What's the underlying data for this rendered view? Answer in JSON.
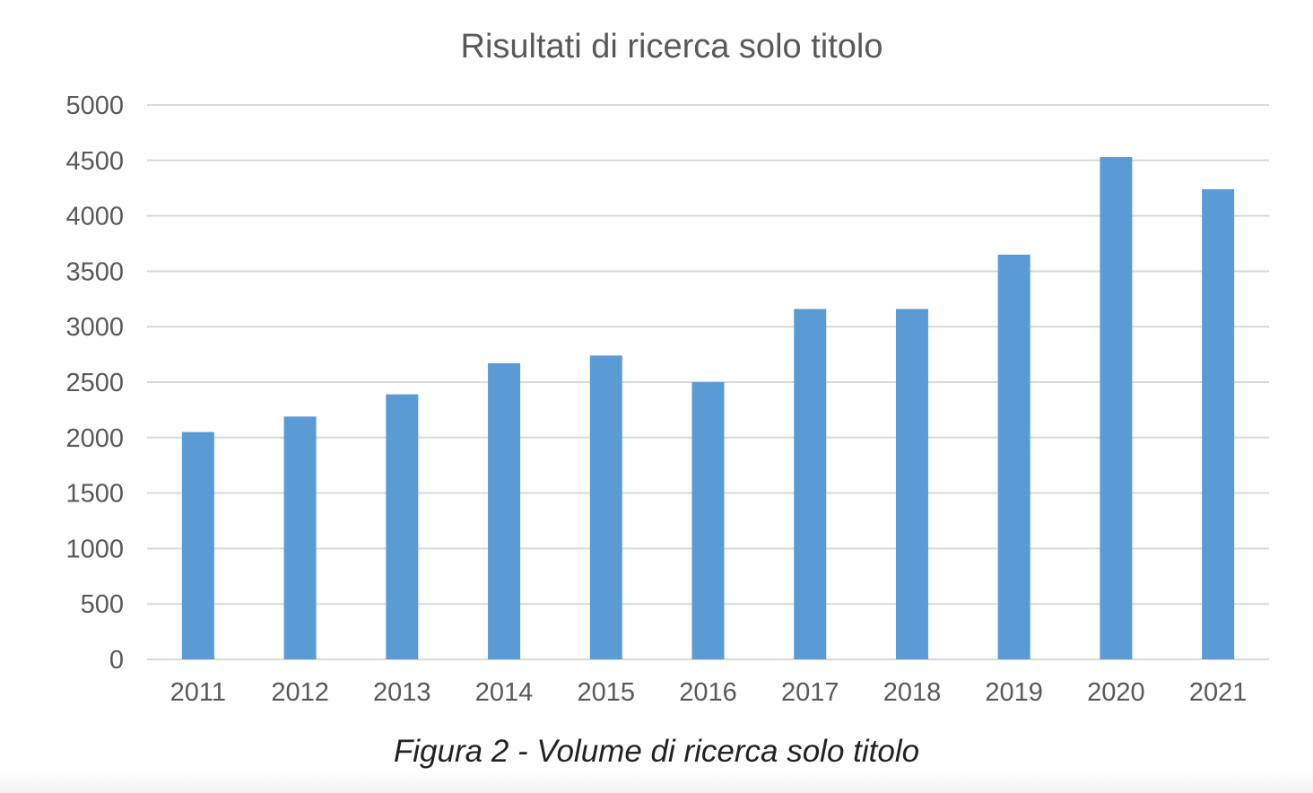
{
  "chart_data": {
    "type": "bar",
    "title": "Risultati di ricerca solo titolo",
    "xlabel": "",
    "ylabel": "",
    "categories": [
      "2011",
      "2012",
      "2013",
      "2014",
      "2015",
      "2016",
      "2017",
      "2018",
      "2019",
      "2020",
      "2021"
    ],
    "values": [
      2050,
      2190,
      2390,
      2670,
      2740,
      2500,
      3160,
      3160,
      3650,
      4530,
      4240
    ],
    "ylim": [
      0,
      5000
    ],
    "yticks": [
      "0",
      "500",
      "1000",
      "1500",
      "2000",
      "2500",
      "3000",
      "3500",
      "4000",
      "4500",
      "5000"
    ],
    "grid": true,
    "legend": "none",
    "bar_color": "#5b9bd5",
    "grid_color": "#d9d9d9"
  },
  "caption": "Figura 2 - Volume di ricerca solo titolo"
}
